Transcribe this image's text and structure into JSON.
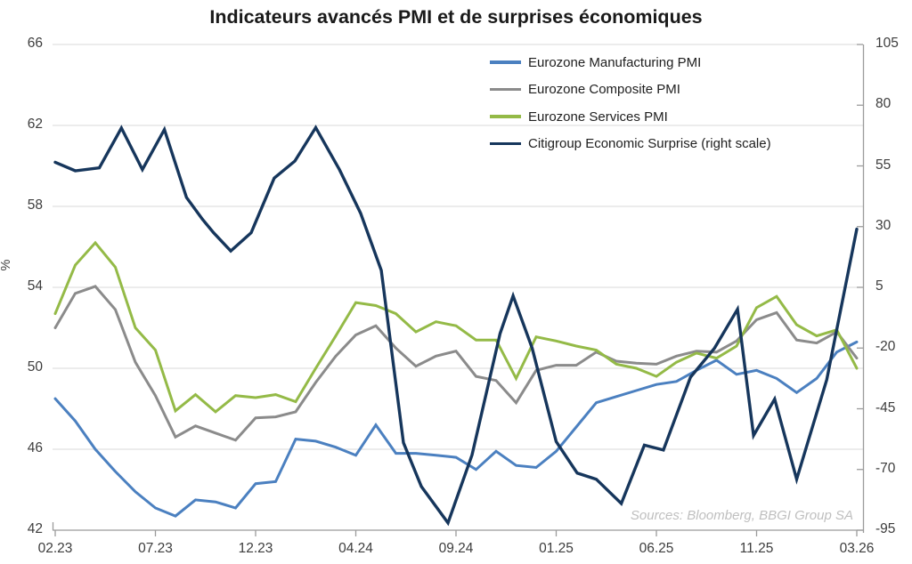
{
  "title": "Indicateurs avancés PMI et de surprises économiques",
  "source_note": "Sources: Bloomberg, BBGI Group SA",
  "colors": {
    "background": "#ffffff",
    "gridline": "#d9d9d9",
    "axis": "#9b9b9b",
    "label": "#3d3d3d",
    "title": "#1a1a1a",
    "source": "#bfbfbf"
  },
  "chart_data": {
    "type": "line",
    "title": "Indicateurs avancés PMI et de surprises économiques",
    "grid": "horizontal",
    "legend_position": "top-right",
    "x_count": 41,
    "x_ticks": {
      "labels": [
        "02.23",
        "07.23",
        "12.23",
        "04.24",
        "09.24",
        "01.25",
        "06.25",
        "11.25",
        "03.26"
      ],
      "indices": [
        0,
        5,
        10,
        15,
        20,
        25,
        30,
        35,
        40
      ]
    },
    "y_left": {
      "label": "%",
      "min": 42,
      "max": 66,
      "ticks": [
        66,
        62,
        58,
        54,
        50,
        46,
        42
      ]
    },
    "y_right": {
      "label": "",
      "min": -95,
      "max": 105,
      "ticks": [
        105,
        80,
        55,
        30,
        5,
        -20,
        -45,
        -70,
        -95
      ]
    },
    "series": [
      {
        "name": "Eurozone Manufacturing PMI",
        "slug": "manufacturing-pmi",
        "color": "#4b80c0",
        "axis": "left",
        "width": 3,
        "values": [
          48.5,
          47.4,
          46.0,
          44.9,
          43.9,
          43.1,
          42.7,
          43.5,
          43.4,
          43.1,
          44.3,
          44.4,
          46.5,
          46.4,
          46.1,
          45.7,
          47.2,
          45.8,
          45.8,
          45.7,
          45.6,
          45.0,
          45.9,
          45.2,
          45.1,
          45.9,
          47.1,
          48.3,
          48.6,
          48.9,
          49.2,
          49.35,
          49.9,
          50.4,
          49.7,
          49.9,
          49.5,
          48.8,
          49.5,
          50.8,
          51.3
        ]
      },
      {
        "name": "Eurozone Composite PMI",
        "slug": "composite-pmi",
        "color": "#8b8b8b",
        "axis": "left",
        "width": 3,
        "values": [
          52.0,
          53.7,
          54.05,
          52.9,
          50.3,
          48.65,
          46.6,
          47.15,
          46.8,
          46.45,
          47.55,
          47.6,
          47.85,
          49.3,
          50.6,
          51.65,
          52.1,
          51.0,
          50.1,
          50.6,
          50.85,
          49.6,
          49.4,
          48.3,
          49.9,
          50.15,
          50.15,
          50.8,
          50.35,
          50.25,
          50.2,
          50.6,
          50.85,
          50.8,
          51.35,
          52.4,
          52.75,
          51.4,
          51.25,
          51.8,
          50.5
        ]
      },
      {
        "name": "Eurozone Services PMI",
        "slug": "services-pmi",
        "color": "#94ba47",
        "axis": "left",
        "width": 3,
        "values": [
          52.7,
          55.1,
          56.2,
          55.0,
          52.0,
          50.9,
          47.9,
          48.7,
          47.85,
          48.65,
          48.55,
          48.7,
          48.35,
          50.0,
          51.6,
          53.25,
          53.1,
          52.7,
          51.8,
          52.3,
          52.1,
          51.4,
          51.4,
          49.5,
          51.55,
          51.35,
          51.1,
          50.9,
          50.2,
          50.0,
          49.6,
          50.3,
          50.75,
          50.5,
          51.1,
          53.0,
          53.55,
          52.15,
          51.6,
          51.9,
          50.0
        ]
      },
      {
        "name": "Citigroup Economic Surprise (right scale)",
        "slug": "citigroup-surprise",
        "color": "#16365c",
        "axis": "right",
        "width": 3.4,
        "points": [
          [
            0,
            56.5
          ],
          [
            1.0,
            53.0
          ],
          [
            2.2,
            54.2
          ],
          [
            3.3,
            70.6
          ],
          [
            4.35,
            53.5
          ],
          [
            5.45,
            70.0
          ],
          [
            6.55,
            42.0
          ],
          [
            7.35,
            33.0
          ],
          [
            7.9,
            27.5
          ],
          [
            8.76,
            20.0
          ],
          [
            9.78,
            27.5
          ],
          [
            10.93,
            50.0
          ],
          [
            11.96,
            57.0
          ],
          [
            13.0,
            70.8
          ],
          [
            14.18,
            53.5
          ],
          [
            15.24,
            35.5
          ],
          [
            16.27,
            12.0
          ],
          [
            17.38,
            -59.0
          ],
          [
            18.27,
            -77.0
          ],
          [
            19.6,
            -92.0
          ],
          [
            20.8,
            -64.0
          ],
          [
            22.2,
            -14.0
          ],
          [
            22.85,
            1.5
          ],
          [
            23.8,
            -20.0
          ],
          [
            25.0,
            -58.5
          ],
          [
            26.05,
            -71.5
          ],
          [
            27.0,
            -74.0
          ],
          [
            28.25,
            -84.0
          ],
          [
            29.4,
            -60.0
          ],
          [
            30.35,
            -62.0
          ],
          [
            31.7,
            -32.0
          ],
          [
            32.9,
            -20.0
          ],
          [
            34.05,
            -4.0
          ],
          [
            34.85,
            -56.0
          ],
          [
            35.9,
            -41.0
          ],
          [
            37.0,
            -74.0
          ],
          [
            38.5,
            -33.0
          ],
          [
            40,
            29.0
          ]
        ]
      }
    ]
  }
}
